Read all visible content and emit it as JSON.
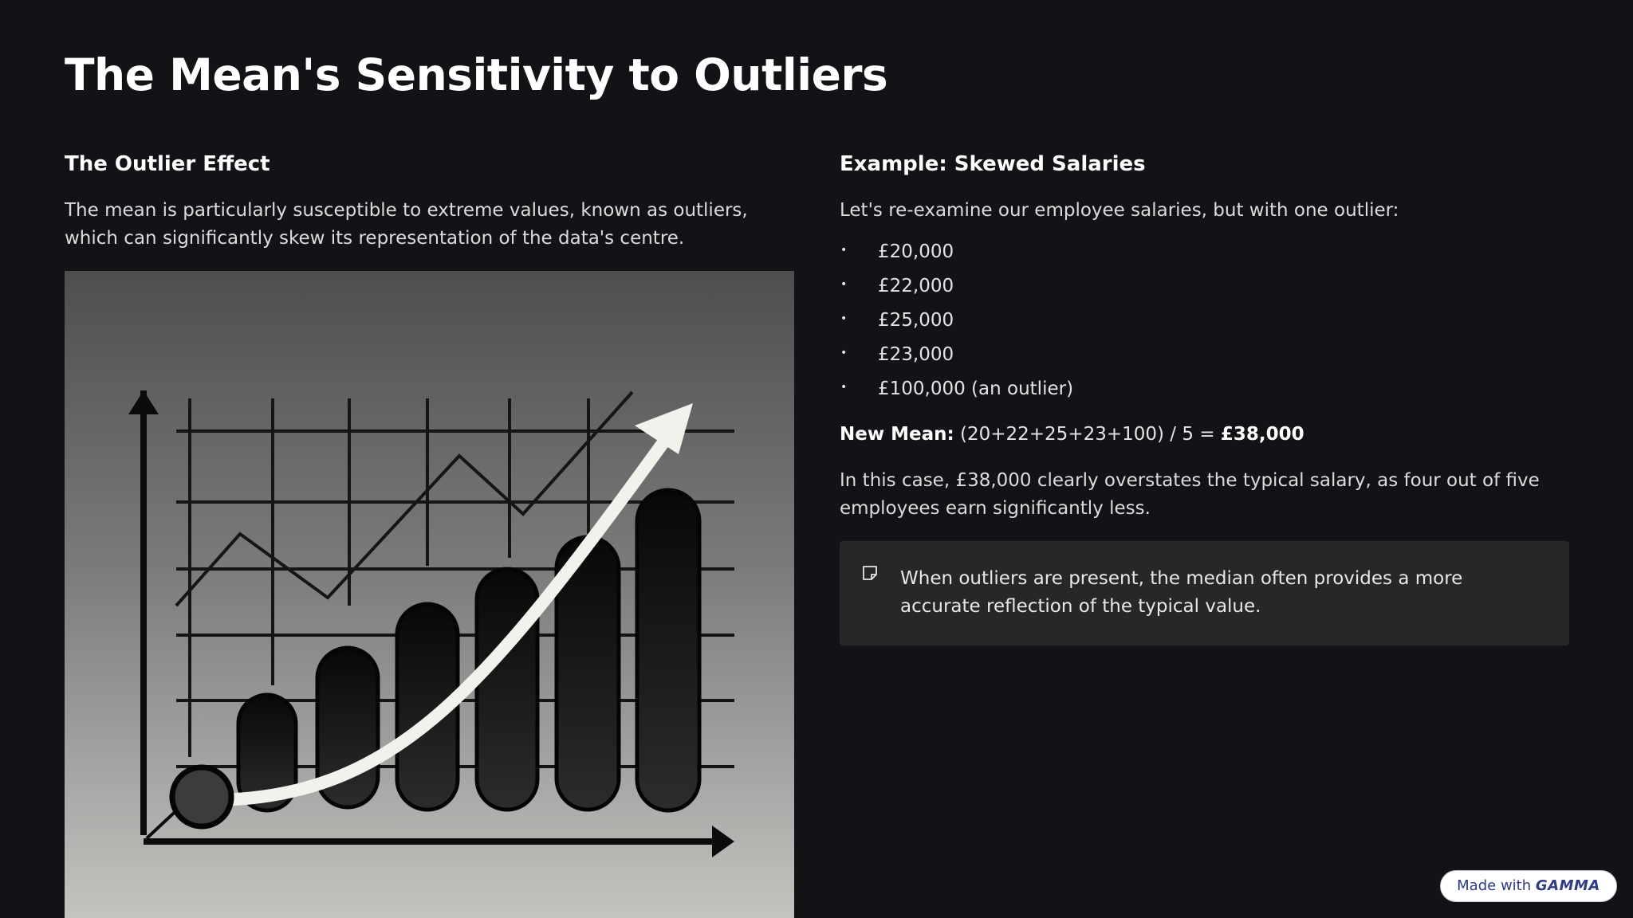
{
  "slide": {
    "title": "The Mean's Sensitivity to Outliers"
  },
  "left": {
    "heading": "The Outlier Effect",
    "body": "The mean is particularly susceptible to extreme values, known as outliers, which can significantly skew its representation of the data's centre.",
    "illustration": "rising-bar-chart-with-arrow"
  },
  "right": {
    "heading": "Example: Skewed Salaries",
    "intro": "Let's re-examine our employee salaries, but with one outlier:",
    "salaries": [
      "£20,000",
      "£22,000",
      "£25,000",
      "£23,000",
      "£100,000 (an outlier)"
    ],
    "bullet": "•",
    "new_mean_label": "New Mean:",
    "new_mean_formula": " (20+22+25+23+100) / 5 = ",
    "new_mean_value": "£38,000",
    "conclusion": "In this case, £38,000 clearly overstates the typical salary, as four out of five employees earn significantly less.",
    "callout_icon": "note-icon",
    "callout": "When outliers are present, the median often provides a more accurate reflection of the typical value."
  },
  "badge": {
    "prefix": "Made with ",
    "brand": "GAMMA"
  },
  "colors": {
    "background": "#121316",
    "callout_background": "#262729",
    "badge_text": "#2f3a88"
  }
}
